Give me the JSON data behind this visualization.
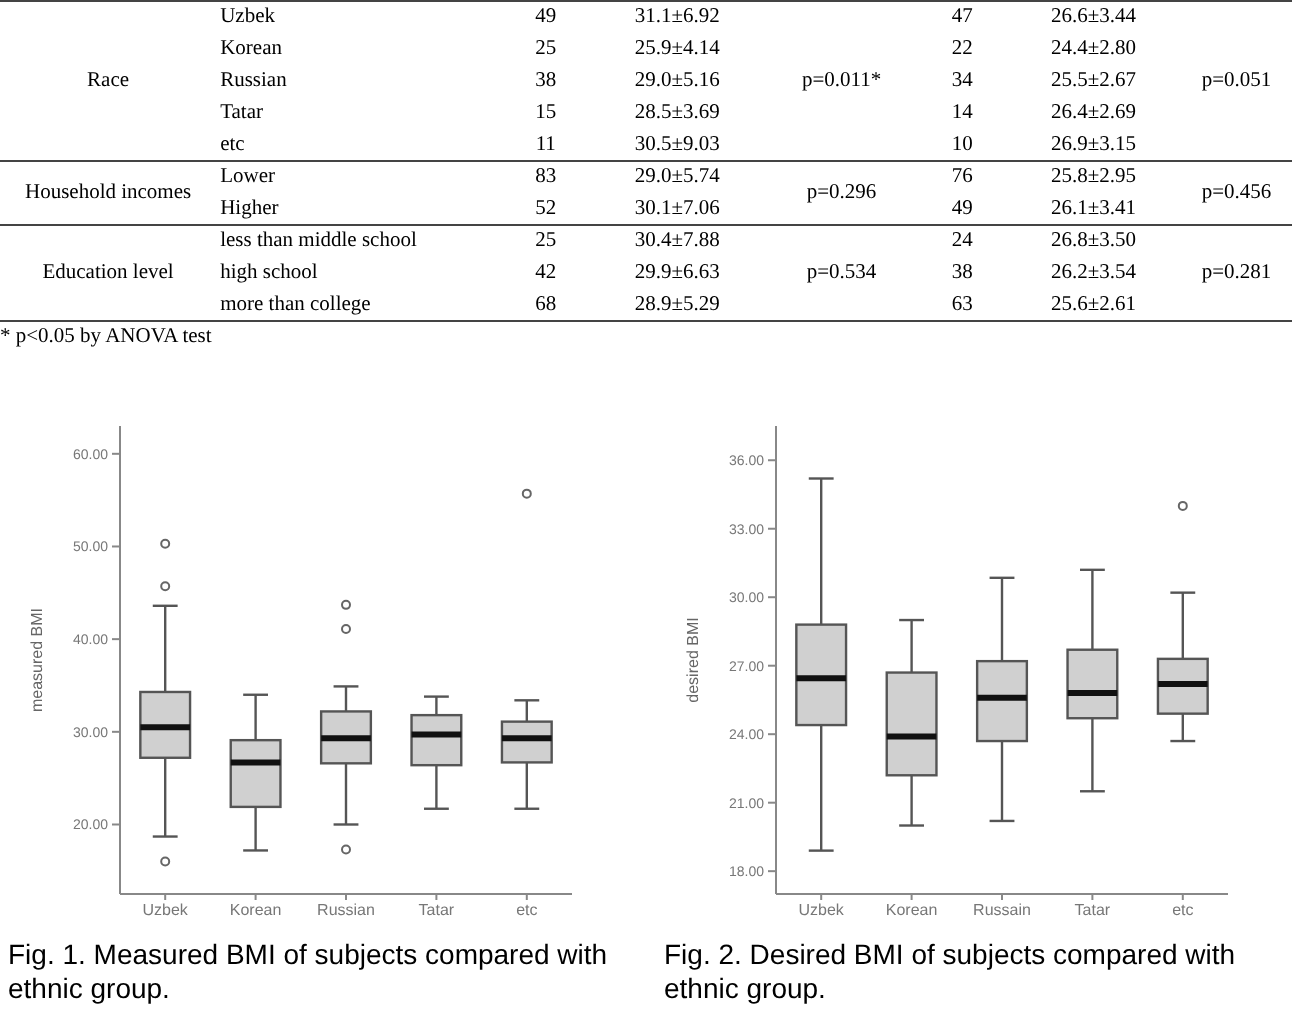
{
  "chart_data": [
    {
      "type": "other",
      "cell_labels": [
        [
          "Race",
          "Uzbek",
          "49",
          "31.1±6.92",
          "p=0.011*",
          "47",
          "26.6±3.44",
          "p=0.051"
        ],
        [
          null,
          "Korean",
          "25",
          "25.9±4.14",
          null,
          "22",
          "24.4±2.80",
          null
        ],
        [
          null,
          "Russian",
          "38",
          "29.0±5.16",
          null,
          "34",
          "25.5±2.67",
          null
        ],
        [
          null,
          "Tatar",
          "15",
          "28.5±3.69",
          null,
          "14",
          "26.4±2.69",
          null
        ],
        [
          null,
          "etc",
          "11",
          "30.5±9.03",
          null,
          "10",
          "26.9±3.15",
          null
        ],
        [
          "Household incomes",
          "Lower",
          "83",
          "29.0±5.74",
          "p=0.296",
          "76",
          "25.8±2.95",
          "p=0.456"
        ],
        [
          null,
          "Higher",
          "52",
          "30.1±7.06",
          null,
          "49",
          "26.1±3.41",
          null
        ],
        [
          "Education level",
          "less than middle school",
          "25",
          "30.4±7.88",
          "p=0.534",
          "24",
          "26.8±3.50",
          "p=0.281"
        ],
        [
          null,
          "high school",
          "42",
          "29.9±6.63",
          null,
          "38",
          "26.2±3.54",
          null
        ],
        [
          null,
          "more than college",
          "68",
          "28.9±5.29",
          null,
          "63",
          "25.6±2.61",
          null
        ]
      ],
      "annotations": [
        "* p<0.05 by ANOVA test"
      ]
    },
    {
      "type": "box",
      "title": "Fig. 1. Measured BMI of subjects compared with ethnic group.",
      "ylabel": "measured BMI",
      "categories": [
        "Uzbek",
        "Korean",
        "Russian",
        "Tatar",
        "etc"
      ],
      "color": "#d0d0d0",
      "ylim": [
        12.5,
        63
      ],
      "yticks": [
        {
          "value": 20,
          "label": "20.00"
        },
        {
          "value": 30,
          "label": "30.00"
        },
        {
          "value": 40,
          "label": "40.00"
        },
        {
          "value": 50,
          "label": "50.00"
        },
        {
          "value": 60,
          "label": "60.00"
        }
      ],
      "boxes": [
        {
          "low": 18.7,
          "q1": 27.2,
          "median": 30.5,
          "q3": 34.3,
          "high": 43.6,
          "outliers": [
            50.3,
            45.7,
            16.0
          ]
        },
        {
          "low": 17.2,
          "q1": 21.9,
          "median": 26.7,
          "q3": 29.1,
          "high": 34.0
        },
        {
          "low": 20.0,
          "q1": 26.6,
          "median": 29.3,
          "q3": 32.2,
          "high": 34.9,
          "outliers": [
            43.7,
            41.1,
            17.3
          ]
        },
        {
          "low": 21.7,
          "q1": 26.4,
          "median": 29.7,
          "q3": 31.8,
          "high": 33.8
        },
        {
          "low": 21.7,
          "q1": 26.7,
          "median": 29.3,
          "q3": 31.1,
          "high": 33.4,
          "outliers": [
            55.7
          ]
        }
      ]
    },
    {
      "type": "box",
      "title": "Fig. 2. Desired BMI of subjects compared with ethnic group.",
      "ylabel": "desired BMI",
      "categories": [
        "Uzbek",
        "Korean",
        "Russain",
        "Tatar",
        "etc"
      ],
      "color": "#d0d0d0",
      "ylim": [
        17,
        37.5
      ],
      "yticks": [
        {
          "value": 18,
          "label": "18.00"
        },
        {
          "value": 21,
          "label": "21.00"
        },
        {
          "value": 24,
          "label": "24.00"
        },
        {
          "value": 27,
          "label": "27.00"
        },
        {
          "value": 30,
          "label": "30.00"
        },
        {
          "value": 33,
          "label": "33.00"
        },
        {
          "value": 36,
          "label": "36.00"
        }
      ],
      "boxes": [
        {
          "low": 18.9,
          "q1": 24.4,
          "median": 26.45,
          "q3": 28.8,
          "high": 35.2
        },
        {
          "low": 20.0,
          "q1": 22.2,
          "median": 23.9,
          "q3": 26.7,
          "high": 29.0
        },
        {
          "low": 20.2,
          "q1": 23.7,
          "median": 25.6,
          "q3": 27.2,
          "high": 30.85
        },
        {
          "low": 21.5,
          "q1": 24.7,
          "median": 25.8,
          "q3": 27.7,
          "high": 31.2
        },
        {
          "low": 23.7,
          "q1": 24.9,
          "median": 26.2,
          "q3": 27.3,
          "high": 30.2,
          "outliers": [
            34.0
          ]
        }
      ]
    }
  ]
}
